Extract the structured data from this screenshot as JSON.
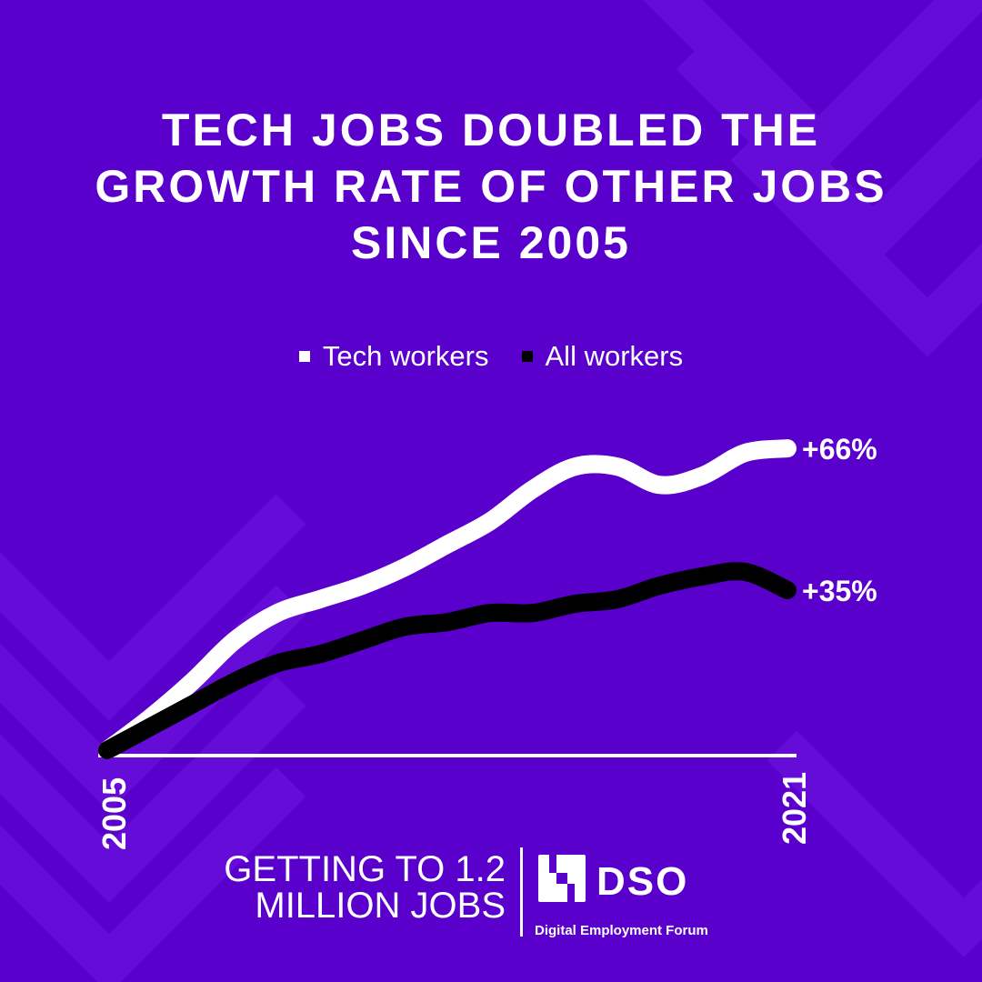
{
  "title": {
    "line1": "TECH JOBS DOUBLED THE",
    "line2": "GROWTH RATE OF OTHER JOBS",
    "line3": "SINCE 2005"
  },
  "colors": {
    "background": "#5a00cc",
    "tech_series": "#ffffff",
    "all_series": "#000000"
  },
  "chart_data": {
    "type": "line",
    "title": "TECH JOBS DOUBLED THE GROWTH RATE OF OTHER JOBS SINCE 2005",
    "x_ticks": [
      "2005",
      "2021"
    ],
    "xlim": [
      2005,
      2021
    ],
    "ylim": [
      0,
      70
    ],
    "grid": false,
    "legend_position": "top-center",
    "series": [
      {
        "name": "Tech workers",
        "color": "#ffffff",
        "end_label": "+66%",
        "points": [
          [
            2005,
            0
          ],
          [
            2006,
            7
          ],
          [
            2007,
            15
          ],
          [
            2008,
            24
          ],
          [
            2009,
            30
          ],
          [
            2010,
            33
          ],
          [
            2011,
            36
          ],
          [
            2012,
            40
          ],
          [
            2013,
            45
          ],
          [
            2014,
            50
          ],
          [
            2015,
            57
          ],
          [
            2016,
            62
          ],
          [
            2017,
            62
          ],
          [
            2018,
            58
          ],
          [
            2019,
            60
          ],
          [
            2020,
            65
          ],
          [
            2021,
            66
          ]
        ]
      },
      {
        "name": "All workers",
        "color": "#000000",
        "end_label": "+35%",
        "points": [
          [
            2005,
            0
          ],
          [
            2006,
            5
          ],
          [
            2007,
            10
          ],
          [
            2008,
            15
          ],
          [
            2009,
            19
          ],
          [
            2010,
            21
          ],
          [
            2011,
            24
          ],
          [
            2012,
            27
          ],
          [
            2013,
            28
          ],
          [
            2014,
            30
          ],
          [
            2015,
            30
          ],
          [
            2016,
            32
          ],
          [
            2017,
            33
          ],
          [
            2018,
            36
          ],
          [
            2019,
            38
          ],
          [
            2020,
            39
          ],
          [
            2021,
            35
          ]
        ]
      }
    ]
  },
  "footer": {
    "line1": "GETTING TO 1.2",
    "line2": "MILLION JOBS",
    "logo_text": "DSO",
    "org": "Digital Employment Forum"
  }
}
